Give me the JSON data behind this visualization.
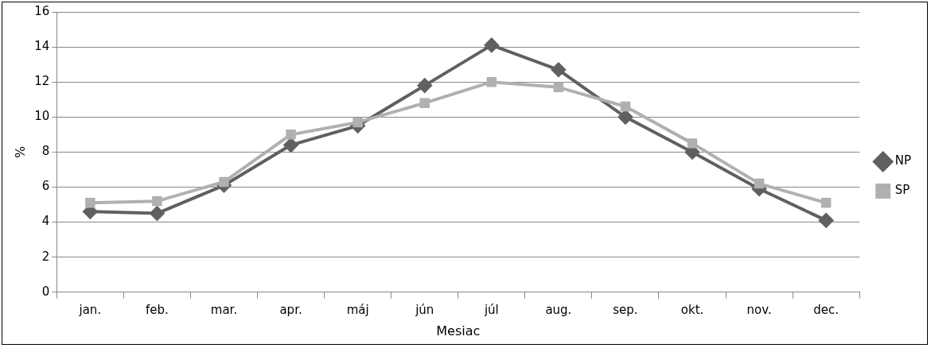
{
  "chart_data": {
    "type": "line",
    "xlabel": "Mesiac",
    "ylabel": "%",
    "categories": [
      "jan.",
      "feb.",
      "mar.",
      "apr.",
      "máj",
      "jún",
      "júl",
      "aug.",
      "sep.",
      "okt.",
      "nov.",
      "dec."
    ],
    "series": [
      {
        "name": "NP",
        "color": "#606060",
        "marker": "diamond",
        "values": [
          4.6,
          4.5,
          6.1,
          8.4,
          9.5,
          11.8,
          14.1,
          12.7,
          10.0,
          8.0,
          5.9,
          4.1
        ]
      },
      {
        "name": "SP",
        "color": "#b0b0b0",
        "marker": "square",
        "values": [
          5.1,
          5.2,
          6.3,
          9.0,
          9.7,
          10.8,
          12.0,
          11.7,
          10.6,
          8.5,
          6.2,
          5.1
        ]
      }
    ],
    "ylim": [
      0,
      16
    ],
    "yticks": [
      0,
      2,
      4,
      6,
      8,
      10,
      12,
      14,
      16
    ],
    "grid": "y",
    "legend": "right",
    "line_style": "solid"
  }
}
